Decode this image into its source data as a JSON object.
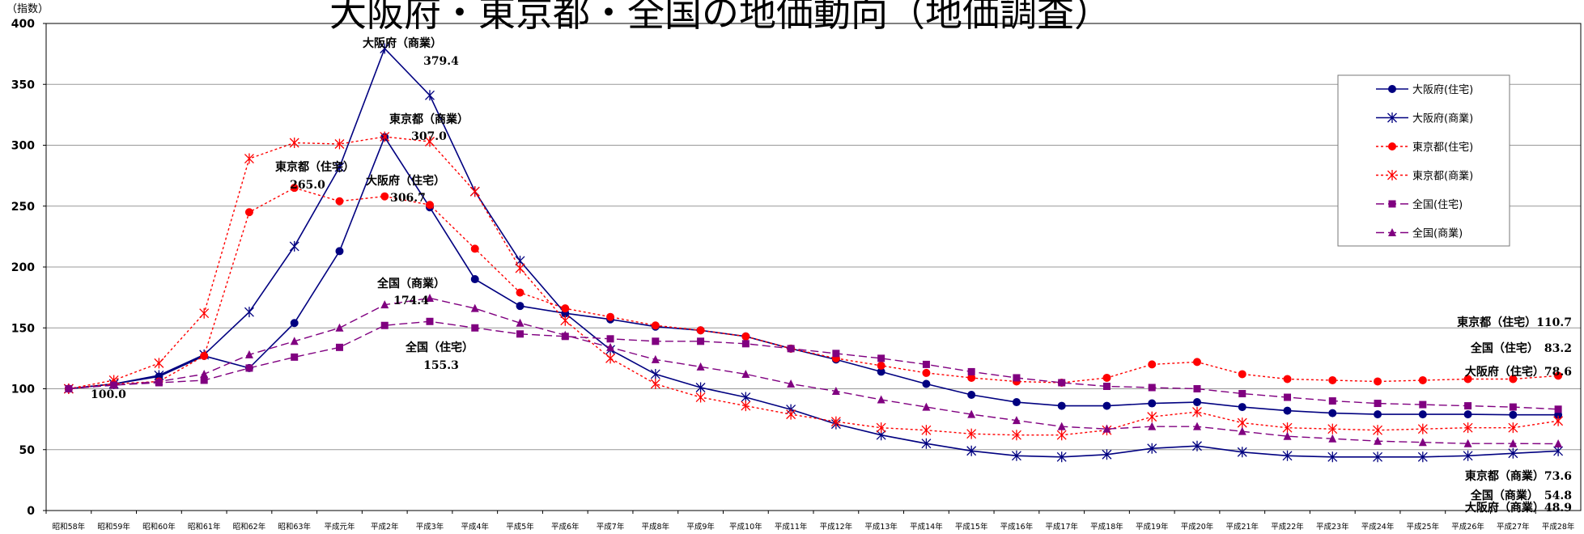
{
  "chart_data": {
    "type": "line",
    "title": "大阪府・東京都・全国の地価動向（地価調査）",
    "ylabel": "（指数）",
    "ylim": [
      0,
      400
    ],
    "yticks": [
      0,
      50,
      100,
      150,
      200,
      250,
      300,
      350,
      400
    ],
    "grid": true,
    "legend_position": "top-right",
    "categories": [
      "昭和58年",
      "昭和59年",
      "昭和60年",
      "昭和61年",
      "昭和62年",
      "昭和63年",
      "平成元年",
      "平成2年",
      "平成3年",
      "平成4年",
      "平成5年",
      "平成6年",
      "平成7年",
      "平成8年",
      "平成9年",
      "平成10年",
      "平成11年",
      "平成12年",
      "平成13年",
      "平成14年",
      "平成15年",
      "平成16年",
      "平成17年",
      "平成18年",
      "平成19年",
      "平成20年",
      "平成21年",
      "平成22年",
      "平成23年",
      "平成24年",
      "平成25年",
      "平成26年",
      "平成27年",
      "平成28年"
    ],
    "series": [
      {
        "name": "大阪府(住宅)",
        "color": "#000080",
        "dash": "solid",
        "marker": "circle",
        "values": [
          100,
          104,
          110,
          127,
          117,
          154,
          213,
          306.7,
          249,
          190,
          168,
          162,
          157,
          151,
          148,
          143,
          133,
          124,
          114,
          104,
          95,
          89,
          86,
          86,
          88,
          89,
          85,
          82,
          80,
          79,
          79,
          79,
          78.6,
          78.6
        ]
      },
      {
        "name": "大阪府(商業)",
        "color": "#000080",
        "dash": "solid",
        "marker": "star",
        "values": [
          100,
          104,
          111,
          128,
          163,
          217,
          282,
          379.4,
          341,
          262,
          205,
          162,
          132,
          112,
          101,
          93,
          83,
          71,
          62,
          55,
          49,
          45,
          44,
          46,
          51,
          53,
          48,
          45,
          44,
          44,
          44,
          45,
          47,
          48.9
        ]
      },
      {
        "name": "東京都(住宅)",
        "color": "#ff0000",
        "dash": "dot",
        "marker": "circle",
        "values": [
          100,
          104,
          106,
          127,
          245,
          265,
          254,
          258,
          251,
          215,
          179,
          166,
          159,
          152,
          148,
          143,
          133,
          125,
          119,
          113,
          109,
          106,
          105,
          109,
          120,
          122,
          112,
          108,
          107,
          106,
          107,
          108,
          108,
          110.7
        ]
      },
      {
        "name": "東京都(商業)",
        "color": "#ff0000",
        "dash": "dot",
        "marker": "star",
        "values": [
          100,
          107,
          121,
          162,
          289,
          302,
          301,
          307,
          303,
          262,
          199,
          156,
          125,
          104,
          93,
          86,
          79,
          73,
          68,
          66,
          63,
          62,
          62,
          66,
          77,
          81,
          72,
          68,
          67,
          66,
          67,
          68,
          68,
          73.6
        ]
      },
      {
        "name": "全国(住宅)",
        "color": "#800080",
        "dash": "dash",
        "marker": "square",
        "values": [
          100,
          103,
          105,
          107,
          117,
          126,
          134,
          152,
          155.3,
          150,
          145,
          143,
          141,
          139,
          139,
          137,
          133,
          129,
          125,
          120,
          114,
          109,
          105,
          102,
          101,
          100,
          96,
          93,
          90,
          88,
          87,
          86,
          85,
          83.2
        ]
      },
      {
        "name": "全国(商業)",
        "color": "#800080",
        "dash": "dash",
        "marker": "triangle",
        "values": [
          100,
          103,
          106,
          112,
          128,
          139,
          150,
          169,
          174.4,
          166,
          154,
          144,
          134,
          124,
          118,
          112,
          104,
          98,
          91,
          85,
          79,
          74,
          69,
          67,
          69,
          69,
          65,
          61,
          59,
          57,
          56,
          55,
          55,
          54.8
        ]
      }
    ],
    "annotations": [
      {
        "text": "大阪府（商業）",
        "value": ""
      },
      {
        "text": "379.4",
        "value": ""
      },
      {
        "text": "東京都（商業）",
        "value": ""
      },
      {
        "text": "307.0",
        "value": ""
      },
      {
        "text": "東京都（住宅）",
        "value": ""
      },
      {
        "text": "265.0",
        "value": ""
      },
      {
        "text": "大阪府（住宅）",
        "value": ""
      },
      {
        "text": "306.7",
        "value": ""
      },
      {
        "text": "全国（商業）",
        "value": ""
      },
      {
        "text": "174.4",
        "value": ""
      },
      {
        "text": "全国（住宅）",
        "value": ""
      },
      {
        "text": "155.3",
        "value": ""
      },
      {
        "text": "100.0",
        "value": ""
      },
      {
        "text": "東京都（住宅）110.7",
        "value": ""
      },
      {
        "text": "全国（住宅）　83.2",
        "value": ""
      },
      {
        "text": "大阪府（住宅）78.6",
        "value": ""
      },
      {
        "text": "東京都（商業）73.6",
        "value": ""
      },
      {
        "text": "全国（商業）　54.8",
        "value": ""
      },
      {
        "text": "大阪府（商業）48.9",
        "value": ""
      }
    ]
  }
}
